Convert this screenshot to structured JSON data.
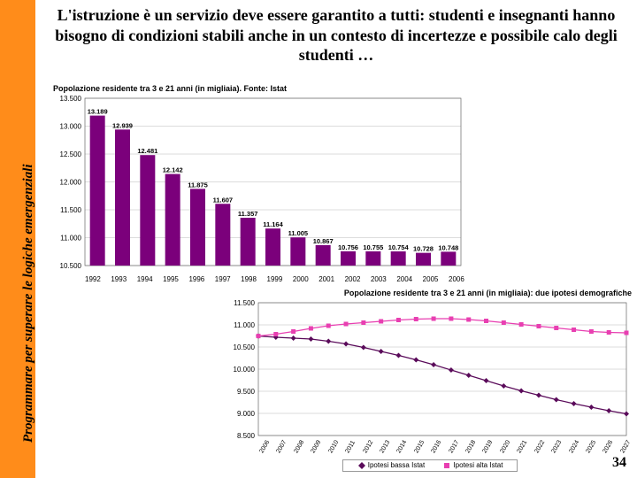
{
  "page_number": 34,
  "sidebar": {
    "label": "Programmare per superare le logiche emergenziali",
    "bg_color": "#ff8c1a",
    "font_size": 15,
    "color": "#000"
  },
  "heading": {
    "text": "L'istruzione è un servizio deve essere garantito a tutti: studenti e insegnanti hanno bisogno di condizioni stabili anche in un contesto di incertezze e possibile calo degli studenti …",
    "font_size": 18,
    "color": "#000"
  },
  "chart1": {
    "type": "bar",
    "title": "Popolazione residente tra 3 e 21 anni (in migliaia). Fonte: Istat",
    "title_fontsize": 9,
    "categories": [
      "1992",
      "1993",
      "1994",
      "1995",
      "1996",
      "1997",
      "1998",
      "1999",
      "2000",
      "2001",
      "2002",
      "2003",
      "2004",
      "2005",
      "2006"
    ],
    "values": [
      13189,
      12939,
      12481,
      12142,
      11875,
      11607,
      11357,
      11164,
      11005,
      10867,
      10756,
      10755,
      10754,
      10728,
      10748
    ],
    "bar_color": "#7b007b",
    "label_color": "#000",
    "label_fontsize": 7.5,
    "axis_fontsize": 8,
    "ylim": [
      10500,
      13500
    ],
    "ytick_step": 500,
    "grid_color": "#b8b8b8",
    "background_color": "#ffffff",
    "bar_width": 0.6
  },
  "chart2": {
    "type": "line",
    "title": "Popolazione residente tra 3 e 21 anni (in migliaia): due ipotesi demografiche",
    "title_fontsize": 9,
    "categories": [
      "2006",
      "2007",
      "2008",
      "2009",
      "2010",
      "2011",
      "2012",
      "2013",
      "2014",
      "2015",
      "2016",
      "2017",
      "2018",
      "2019",
      "2020",
      "2021",
      "2022",
      "2023",
      "2024",
      "2025",
      "2026",
      "2027"
    ],
    "series": [
      {
        "name": "Ipotesi bassa Istat",
        "color": "#5a0b5a",
        "marker": "diamond",
        "line_width": 1.2,
        "values": [
          10748,
          10720,
          10700,
          10680,
          10630,
          10570,
          10490,
          10400,
          10310,
          10210,
          10100,
          9980,
          9860,
          9740,
          9620,
          9510,
          9410,
          9310,
          9220,
          9140,
          9060,
          8990
        ]
      },
      {
        "name": "Ipotesi alta Istat",
        "color": "#e83fb1",
        "marker": "square",
        "line_width": 1.2,
        "values": [
          10748,
          10790,
          10850,
          10920,
          10980,
          11020,
          11050,
          11080,
          11110,
          11130,
          11140,
          11140,
          11120,
          11090,
          11050,
          11010,
          10970,
          10930,
          10890,
          10850,
          10830,
          10820
        ]
      }
    ],
    "legend_labels": [
      "Ipotesi bassa Istat",
      "Ipotesi alta Istat"
    ],
    "axis_fontsize": 8,
    "ylim": [
      8500,
      11500
    ],
    "ytick_step": 500,
    "grid_color": "#b8b8b8",
    "background_color": "#ffffff"
  }
}
